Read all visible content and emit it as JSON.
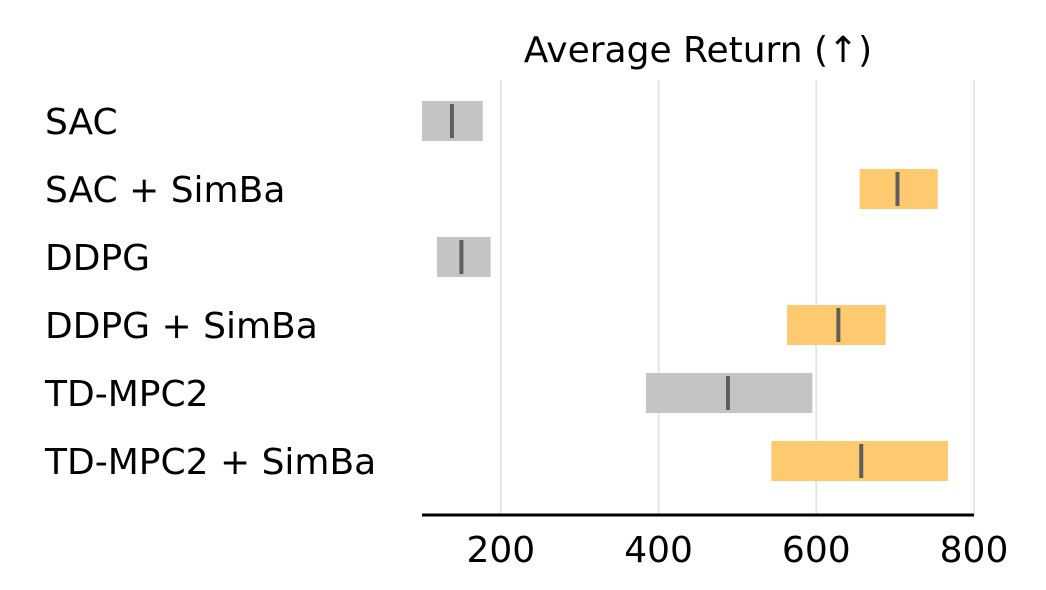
{
  "chart_data": {
    "type": "bar",
    "title": "Average Return (↑)",
    "xlabel": "",
    "ylabel": "",
    "xlim": [
      100,
      800
    ],
    "xticks": [
      200,
      400,
      600,
      800
    ],
    "xtick_labels": [
      "200",
      "400",
      "600",
      "800"
    ],
    "grid": "vertical",
    "categories": [
      "SAC",
      "SAC + SimBa",
      "DDPG",
      "DDPG + SimBa",
      "TD-MPC2",
      "TD-MPC2 + SimBa"
    ],
    "values": [
      138,
      703,
      150,
      628,
      488,
      657
    ],
    "ci_low": [
      100,
      655,
      119,
      563,
      384,
      543
    ],
    "ci_high": [
      177,
      754,
      187,
      688,
      595,
      767
    ],
    "colors": {
      "baseline": "#c4c4c4",
      "simba": "#fec96f",
      "median_line": "#5e5e5e",
      "grid": "#e6e6e6",
      "axis": "#000000"
    },
    "bar_color_keys": [
      "baseline",
      "simba",
      "baseline",
      "simba",
      "baseline",
      "simba"
    ]
  }
}
